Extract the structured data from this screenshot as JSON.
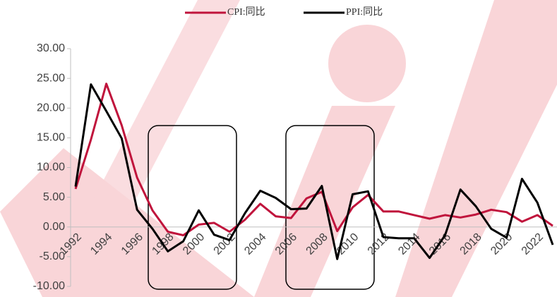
{
  "chart_data": {
    "type": "line",
    "categories": [
      "1992",
      null,
      "1994",
      null,
      "1996",
      null,
      "1998",
      null,
      "2000",
      null,
      "2002",
      null,
      "2004",
      null,
      "2006",
      null,
      "2008",
      null,
      "2010",
      null,
      "2012",
      null,
      "2014",
      null,
      "2016",
      null,
      "2018",
      null,
      "2020",
      null,
      "2022",
      null
    ],
    "series": [
      {
        "name": "CPI:同比",
        "color": "#c0143c",
        "values": [
          6.4,
          14.7,
          24.1,
          17.1,
          8.3,
          2.8,
          -0.8,
          -1.4,
          0.4,
          0.7,
          -0.8,
          1.2,
          3.9,
          1.8,
          1.5,
          4.8,
          5.9,
          -0.7,
          3.3,
          5.4,
          2.6,
          2.6,
          2.0,
          1.4,
          2.0,
          1.6,
          2.1,
          2.9,
          2.5,
          0.9,
          2.0,
          0.2
        ]
      },
      {
        "name": "PPI:同比",
        "color": "#000000",
        "values": [
          6.8,
          24.0,
          19.5,
          14.9,
          2.9,
          -0.3,
          -4.1,
          -2.4,
          2.8,
          -1.3,
          -2.2,
          2.3,
          6.1,
          4.9,
          3.0,
          3.1,
          6.9,
          -5.4,
          5.5,
          6.0,
          -1.7,
          -1.9,
          -1.9,
          -5.2,
          -1.4,
          6.3,
          3.5,
          -0.3,
          -1.8,
          8.1,
          4.1,
          -3.0
        ]
      }
    ],
    "ylim": [
      -10,
      30
    ],
    "yticks": [
      {
        "value": -10,
        "label": "-10.00"
      },
      {
        "value": -5,
        "label": "-5.00"
      },
      {
        "value": 0,
        "label": "0.00"
      },
      {
        "value": 5,
        "label": "5.00"
      },
      {
        "value": 10,
        "label": "10.00"
      },
      {
        "value": 15,
        "label": "15.00"
      },
      {
        "value": 20,
        "label": "20.00"
      },
      {
        "value": 25,
        "label": "25.00"
      },
      {
        "value": 30,
        "label": "30.00"
      }
    ],
    "legend": "top"
  }
}
